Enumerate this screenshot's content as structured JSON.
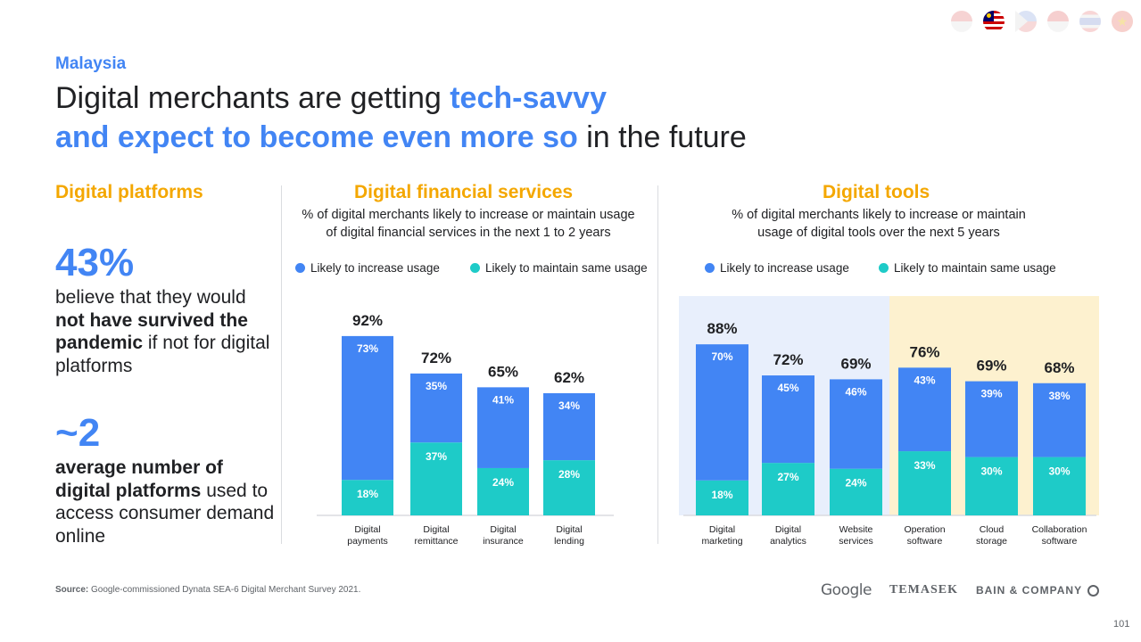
{
  "country": "Malaysia",
  "title": {
    "part1": "Digital merchants are getting ",
    "highlight1": "tech-savvy",
    "highlight2": "and expect to become even more so",
    "part2": " in the future"
  },
  "platforms": {
    "heading": "Digital platforms",
    "stat1": {
      "value": "43%",
      "text_a": "believe that they would ",
      "text_bold": "not have survived the pandemic",
      "text_b": " if not for digital platforms"
    },
    "stat2": {
      "value": "~2",
      "text_bold": "average number of digital platforms",
      "text_b": " used to access consumer demand online"
    }
  },
  "financial": {
    "heading": "Digital financial services",
    "subtitle_line1": "% of digital merchants likely to increase or maintain usage",
    "subtitle_line2": "of digital financial services in the next 1 to 2 years",
    "legend_increase": "Likely to increase usage",
    "legend_maintain": "Likely to maintain same usage"
  },
  "tools": {
    "heading": "Digital tools",
    "subtitle_line1": "% of digital merchants likely to increase or maintain",
    "subtitle_line2": "usage of digital tools over the next 5 years",
    "legend_increase": "Likely to increase usage",
    "legend_maintain": "Likely to maintain same usage"
  },
  "colors": {
    "increase": "#4285f4",
    "maintain": "#1ecbc8",
    "highlight_blue_bg": "#e8effc",
    "highlight_yellow_bg": "#fdf1cf",
    "heading_yellow": "#f4a700"
  },
  "chart_data": [
    {
      "type": "bar",
      "stacked": true,
      "title": "Digital financial services",
      "categories": [
        [
          "Digital",
          "payments"
        ],
        [
          "Digital",
          "remittance"
        ],
        [
          "Digital",
          "insurance"
        ],
        [
          "Digital",
          "lending"
        ]
      ],
      "series": [
        {
          "name": "Likely to maintain same usage",
          "values": [
            18,
            37,
            24,
            28
          ]
        },
        {
          "name": "Likely to increase usage",
          "values": [
            73,
            35,
            41,
            34
          ]
        }
      ],
      "totals": [
        92,
        72,
        65,
        62
      ],
      "unit": "%"
    },
    {
      "type": "bar",
      "stacked": true,
      "title": "Digital tools",
      "categories": [
        [
          "Digital",
          "marketing"
        ],
        [
          "Digital",
          "analytics"
        ],
        [
          "Website",
          "services"
        ],
        [
          "Operation",
          "software"
        ],
        [
          "Cloud",
          "storage"
        ],
        [
          "Collaboration",
          "software"
        ]
      ],
      "series": [
        {
          "name": "Likely to maintain same usage",
          "values": [
            18,
            27,
            24,
            33,
            30,
            30
          ]
        },
        {
          "name": "Likely to increase usage",
          "values": [
            70,
            45,
            46,
            43,
            39,
            38
          ]
        }
      ],
      "totals": [
        88,
        72,
        69,
        76,
        69,
        68
      ],
      "unit": "%"
    }
  ],
  "footer": {
    "source_label": "Source:",
    "source_text": " Google-commissioned Dynata SEA-6 Digital Merchant Survey 2021.",
    "logo_google": "Google",
    "logo_temasek": "TEMASEK",
    "logo_bain": "BAIN & COMPANY",
    "page_number": "101"
  }
}
